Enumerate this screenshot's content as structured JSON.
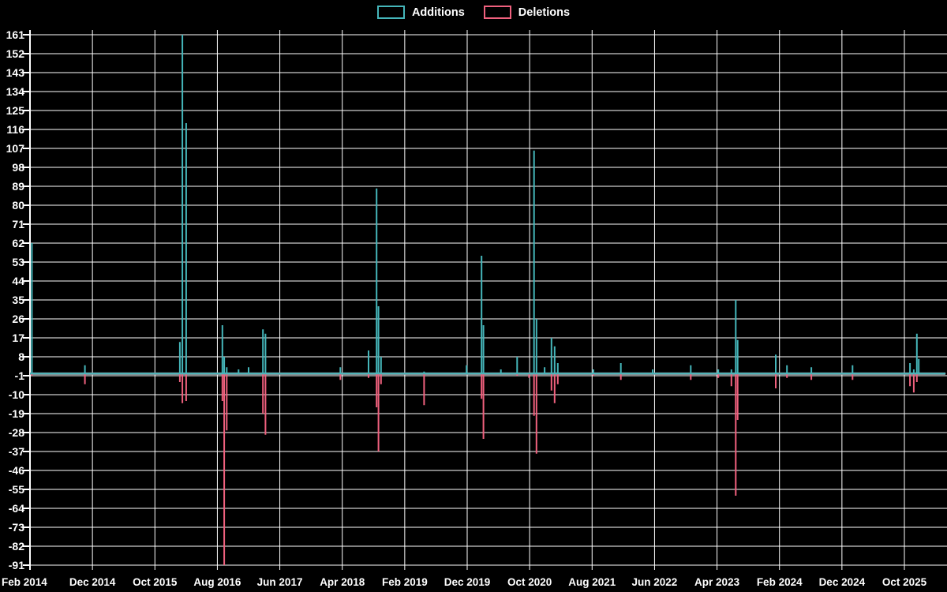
{
  "window": {
    "background": "#000000",
    "grid_color": "#ffffff",
    "text_color": "#ffffff"
  },
  "legend": {
    "items": [
      {
        "label": "Additions",
        "color": "#45b6ba"
      },
      {
        "label": "Deletions",
        "color": "#f0617e"
      }
    ]
  },
  "chart_data": {
    "type": "line",
    "subtype": "impulse-spikes",
    "title": "",
    "xlabel": "",
    "ylabel": "",
    "grid": true,
    "legend_position": "top-center",
    "baseline_value": 0,
    "baseline_color": "#96b8bb",
    "x_axis": {
      "tick_labels": [
        "Feb 2014",
        "Dec 2014",
        "Oct 2015",
        "Aug 2016",
        "Jun 2017",
        "Apr 2018",
        "Feb 2019",
        "Dec 2019",
        "Oct 2020",
        "Aug 2021",
        "Jun 2022",
        "Apr 2023",
        "Feb 2024",
        "Dec 2024",
        "Oct 2025"
      ],
      "months_between_ticks": 10,
      "domain_months": [
        0,
        146.6
      ]
    },
    "y_axis": {
      "min": -91,
      "max": 161,
      "step": 9,
      "tick_values": [
        161,
        152,
        143,
        134,
        125,
        116,
        107,
        98,
        89,
        80,
        71,
        62,
        53,
        44,
        35,
        26,
        17,
        8,
        -1,
        -10,
        -19,
        -28,
        -37,
        -46,
        -55,
        -64,
        -73,
        -82,
        -91
      ]
    },
    "series": [
      {
        "name": "Additions",
        "color": "#45b6ba",
        "points": [
          [
            0.3,
            62
          ],
          [
            8.8,
            4
          ],
          [
            24.0,
            15
          ],
          [
            24.4,
            161
          ],
          [
            25.0,
            119
          ],
          [
            30.8,
            23
          ],
          [
            31.1,
            8
          ],
          [
            31.5,
            3
          ],
          [
            33.4,
            2
          ],
          [
            35.0,
            3
          ],
          [
            37.3,
            21
          ],
          [
            37.7,
            19
          ],
          [
            49.7,
            3
          ],
          [
            54.2,
            11
          ],
          [
            55.5,
            88
          ],
          [
            55.8,
            32
          ],
          [
            56.2,
            8
          ],
          [
            63.1,
            1
          ],
          [
            69.9,
            4
          ],
          [
            72.3,
            56
          ],
          [
            72.6,
            23
          ],
          [
            75.4,
            2
          ],
          [
            78.0,
            8
          ],
          [
            80.7,
            106
          ],
          [
            81.1,
            26
          ],
          [
            82.4,
            3
          ],
          [
            83.5,
            17
          ],
          [
            84.0,
            13
          ],
          [
            84.5,
            5
          ],
          [
            90.2,
            2
          ],
          [
            94.6,
            5
          ],
          [
            99.7,
            2
          ],
          [
            105.8,
            4
          ],
          [
            110.2,
            2
          ],
          [
            112.3,
            2
          ],
          [
            113.0,
            35
          ],
          [
            113.3,
            16
          ],
          [
            119.4,
            9
          ],
          [
            121.2,
            4
          ],
          [
            125.1,
            3
          ],
          [
            131.7,
            4
          ],
          [
            140.9,
            5
          ],
          [
            141.5,
            2
          ],
          [
            142.0,
            19
          ],
          [
            142.3,
            7
          ]
        ]
      },
      {
        "name": "Deletions",
        "color": "#f0617e",
        "points": [
          [
            0.3,
            -1
          ],
          [
            8.8,
            -5
          ],
          [
            24.0,
            -4
          ],
          [
            24.4,
            -14
          ],
          [
            25.0,
            -13
          ],
          [
            30.8,
            -13
          ],
          [
            31.1,
            -91
          ],
          [
            31.5,
            -27
          ],
          [
            37.3,
            -19
          ],
          [
            37.7,
            -29
          ],
          [
            49.7,
            -3
          ],
          [
            54.2,
            -2
          ],
          [
            55.5,
            -16
          ],
          [
            55.8,
            -37
          ],
          [
            56.2,
            -5
          ],
          [
            63.1,
            -15
          ],
          [
            72.3,
            -12
          ],
          [
            72.6,
            -31
          ],
          [
            78.0,
            -1
          ],
          [
            79.9,
            -2
          ],
          [
            80.7,
            -20
          ],
          [
            81.1,
            -38
          ],
          [
            83.5,
            -8
          ],
          [
            84.0,
            -14
          ],
          [
            84.5,
            -5
          ],
          [
            90.2,
            -1
          ],
          [
            94.6,
            -3
          ],
          [
            105.8,
            -3
          ],
          [
            110.2,
            -2
          ],
          [
            112.3,
            -6
          ],
          [
            113.0,
            -58
          ],
          [
            113.3,
            -22
          ],
          [
            119.4,
            -7
          ],
          [
            121.2,
            -2
          ],
          [
            125.1,
            -3
          ],
          [
            131.7,
            -3
          ],
          [
            140.9,
            -6
          ],
          [
            141.5,
            -9
          ],
          [
            142.0,
            -4
          ]
        ]
      }
    ]
  }
}
